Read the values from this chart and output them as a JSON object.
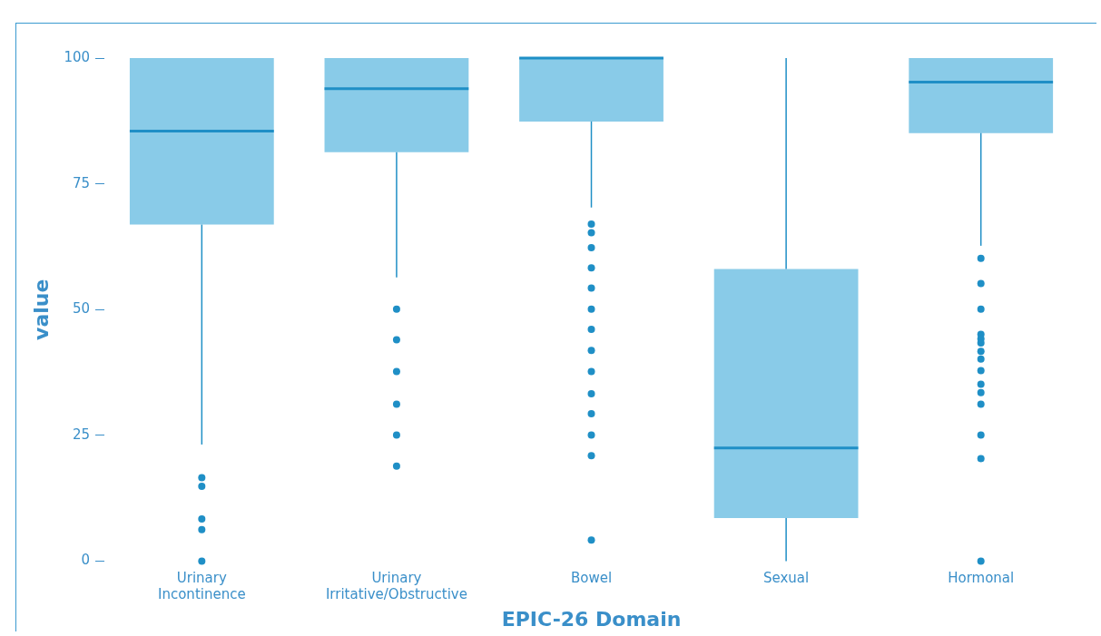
{
  "chart_data": {
    "type": "box",
    "xlabel": "EPIC-26 Domain",
    "ylabel": "value",
    "categories": [
      "Urinary Incontinence",
      "Urinary Irritative/Obstructive",
      "Bowel",
      "Sexual",
      "Hormonal"
    ],
    "boxes": [
      {
        "low": 23.2,
        "q1": 66.9,
        "median": 85.5,
        "q3": 100,
        "high": 100,
        "outliers": [
          16.6,
          14.9,
          8.4,
          6.3,
          0
        ]
      },
      {
        "low": 56.4,
        "q1": 81.3,
        "median": 93.9,
        "q3": 100,
        "high": 100,
        "outliers": [
          50.1,
          44,
          37.7,
          31.2,
          25.1,
          18.9
        ]
      },
      {
        "low": 70.3,
        "q1": 87.4,
        "median": 100,
        "q3": 100,
        "high": 100,
        "outliers": [
          67,
          65.3,
          62.3,
          58.3,
          54.3,
          50.1,
          46.1,
          41.9,
          37.7,
          33.3,
          29.3,
          25.1,
          21,
          4.2
        ]
      },
      {
        "low": 0,
        "q1": 8.6,
        "median": 22.5,
        "q3": 58.1,
        "high": 100
      },
      {
        "low": 62.7,
        "q1": 85.1,
        "median": 95.2,
        "q3": 100,
        "high": 100,
        "outliers": [
          60.2,
          55.2,
          50.1,
          45.1,
          44.2,
          43.4,
          41.7,
          40.2,
          37.9,
          35.2,
          33.5,
          31.2,
          25.1,
          20.4,
          0
        ]
      }
    ],
    "color": "#89cbe8",
    "ylim": [
      0,
      100
    ],
    "yticks": [
      0,
      25,
      50,
      75,
      100
    ],
    "grid": false,
    "legend": false
  }
}
